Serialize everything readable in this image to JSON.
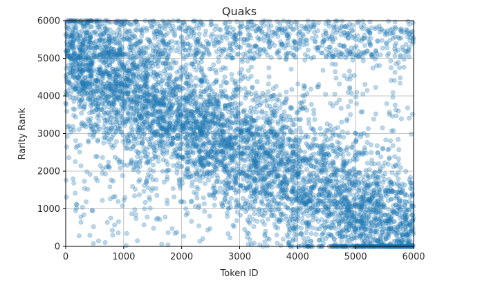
{
  "chart_data": {
    "type": "scatter",
    "title": "Quaks",
    "xlabel": "Token ID",
    "ylabel": "Rarity Rank",
    "xlim": [
      0,
      6000
    ],
    "ylim": [
      0,
      6000
    ],
    "x_ticks": [
      0,
      1000,
      2000,
      3000,
      4000,
      5000,
      6000
    ],
    "y_ticks": [
      0,
      1000,
      2000,
      3000,
      4000,
      5000,
      6000
    ],
    "x_tick_labels": [
      "0",
      "1000",
      "2000",
      "3000",
      "4000",
      "5000",
      "6000"
    ],
    "y_tick_labels": [
      "0",
      "1000",
      "2000",
      "3000",
      "4000",
      "5000",
      "6000"
    ],
    "grid": true,
    "marker_color": "#1f77b4",
    "marker_alpha": 0.3,
    "trend": "rarity rank decreases as token id increases",
    "clusters": [
      {
        "x_range": [
          0,
          2000
        ],
        "y_range": [
          3500,
          6000
        ],
        "density": "high"
      },
      {
        "x_range": [
          2000,
          4000
        ],
        "y_range": [
          1500,
          4000
        ],
        "density": "high"
      },
      {
        "x_range": [
          4000,
          6000
        ],
        "y_range": [
          0,
          2500
        ],
        "density": "high"
      },
      {
        "x_range": [
          0,
          6000
        ],
        "y_range": [
          5000,
          6000
        ],
        "density": "medium"
      },
      {
        "x_range": [
          0,
          2000
        ],
        "y_range": [
          0,
          3000
        ],
        "density": "low"
      },
      {
        "x_range": [
          4000,
          6000
        ],
        "y_range": [
          3000,
          6000
        ],
        "density": "low"
      }
    ],
    "point_count": 6000
  }
}
